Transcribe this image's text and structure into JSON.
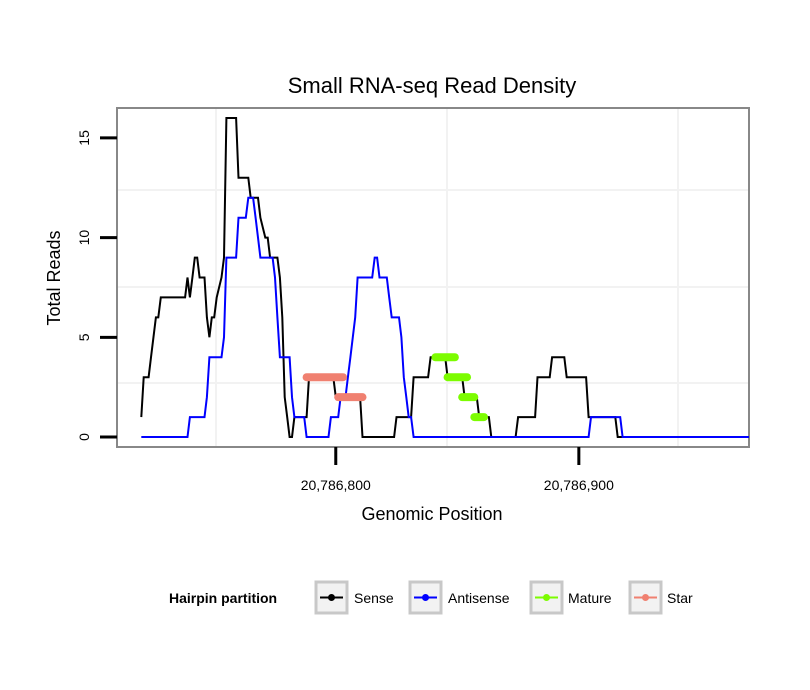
{
  "chart_data": {
    "type": "line",
    "title": "Small RNA-seq Read Density",
    "xlabel": "Genomic Position",
    "ylabel": "Total Reads",
    "xlim": [
      20786710,
      20786970
    ],
    "ylim": [
      -0.5,
      16.5
    ],
    "x_ticks": [
      20786800,
      20786900
    ],
    "x_tick_labels": [
      "20,786,800",
      "20,786,900"
    ],
    "y_ticks": [
      0,
      5,
      10,
      15
    ],
    "y_tick_labels": [
      "0",
      "5",
      "10",
      "15"
    ],
    "grid": true,
    "legend_position": "bottom",
    "legend_title": "Hairpin partition",
    "series": [
      {
        "name": "Sense",
        "color": "#000000",
        "style": "step",
        "points": [
          [
            20786720,
            1
          ],
          [
            20786721,
            3
          ],
          [
            20786723,
            3
          ],
          [
            20786724,
            4
          ],
          [
            20786726,
            6
          ],
          [
            20786727,
            6
          ],
          [
            20786728,
            7
          ],
          [
            20786738,
            7
          ],
          [
            20786739,
            8
          ],
          [
            20786740,
            7
          ],
          [
            20786741,
            8
          ],
          [
            20786742,
            9
          ],
          [
            20786743,
            9
          ],
          [
            20786744,
            8
          ],
          [
            20786746,
            8
          ],
          [
            20786747,
            6
          ],
          [
            20786748,
            5
          ],
          [
            20786749,
            6
          ],
          [
            20786750,
            6
          ],
          [
            20786751,
            7
          ],
          [
            20786753,
            8
          ],
          [
            20786754,
            9
          ],
          [
            20786755,
            16
          ],
          [
            20786759,
            16
          ],
          [
            20786760,
            13
          ],
          [
            20786764,
            13
          ],
          [
            20786765,
            12
          ],
          [
            20786768,
            12
          ],
          [
            20786769,
            11
          ],
          [
            20786771,
            10
          ],
          [
            20786772,
            10
          ],
          [
            20786773,
            9
          ],
          [
            20786776,
            9
          ],
          [
            20786777,
            8
          ],
          [
            20786778,
            6
          ],
          [
            20786779,
            2
          ],
          [
            20786780,
            1
          ],
          [
            20786781,
            0
          ],
          [
            20786782,
            0
          ],
          [
            20786783,
            1
          ],
          [
            20786788,
            1
          ],
          [
            20786789,
            3
          ],
          [
            20786799,
            3
          ],
          [
            20786800,
            2
          ],
          [
            20786810,
            2
          ],
          [
            20786811,
            0
          ],
          [
            20786824,
            0
          ],
          [
            20786825,
            1
          ],
          [
            20786831,
            1
          ],
          [
            20786832,
            3
          ],
          [
            20786838,
            3
          ],
          [
            20786839,
            4
          ],
          [
            20786845,
            4
          ],
          [
            20786846,
            3
          ],
          [
            20786852,
            3
          ],
          [
            20786853,
            2
          ],
          [
            20786858,
            2
          ],
          [
            20786859,
            1
          ],
          [
            20786863,
            1
          ],
          [
            20786864,
            0
          ],
          [
            20786874,
            0
          ],
          [
            20786875,
            1
          ],
          [
            20786882,
            1
          ],
          [
            20786883,
            3
          ],
          [
            20786888,
            3
          ],
          [
            20786889,
            4
          ],
          [
            20786894,
            4
          ],
          [
            20786895,
            3
          ],
          [
            20786903,
            3
          ],
          [
            20786904,
            1
          ],
          [
            20786915,
            1
          ],
          [
            20786916,
            0
          ],
          [
            20786970,
            0
          ]
        ]
      },
      {
        "name": "Antisense",
        "color": "#0000ff",
        "style": "step",
        "points": [
          [
            20786720,
            0
          ],
          [
            20786739,
            0
          ],
          [
            20786740,
            1
          ],
          [
            20786746,
            1
          ],
          [
            20786747,
            2
          ],
          [
            20786748,
            4
          ],
          [
            20786753,
            4
          ],
          [
            20786754,
            5
          ],
          [
            20786755,
            9
          ],
          [
            20786759,
            9
          ],
          [
            20786760,
            11
          ],
          [
            20786763,
            11
          ],
          [
            20786764,
            12
          ],
          [
            20786766,
            12
          ],
          [
            20786767,
            11
          ],
          [
            20786768,
            10
          ],
          [
            20786769,
            9
          ],
          [
            20786774,
            9
          ],
          [
            20786775,
            8
          ],
          [
            20786776,
            6
          ],
          [
            20786777,
            4
          ],
          [
            20786781,
            4
          ],
          [
            20786782,
            2
          ],
          [
            20786783,
            1
          ],
          [
            20786787,
            1
          ],
          [
            20786788,
            0
          ],
          [
            20786797,
            0
          ],
          [
            20786798,
            1
          ],
          [
            20786801,
            1
          ],
          [
            20786802,
            2
          ],
          [
            20786804,
            2
          ],
          [
            20786805,
            3
          ],
          [
            20786806,
            4
          ],
          [
            20786807,
            5
          ],
          [
            20786808,
            6
          ],
          [
            20786809,
            8
          ],
          [
            20786815,
            8
          ],
          [
            20786816,
            9
          ],
          [
            20786817,
            9
          ],
          [
            20786818,
            8
          ],
          [
            20786821,
            8
          ],
          [
            20786822,
            7
          ],
          [
            20786823,
            6
          ],
          [
            20786826,
            6
          ],
          [
            20786827,
            5
          ],
          [
            20786828,
            3
          ],
          [
            20786829,
            2
          ],
          [
            20786830,
            1
          ],
          [
            20786831,
            1
          ],
          [
            20786832,
            0
          ],
          [
            20786904,
            0
          ],
          [
            20786905,
            1
          ],
          [
            20786917,
            1
          ],
          [
            20786918,
            0
          ],
          [
            20786970,
            0
          ]
        ]
      },
      {
        "name": "Mature",
        "color": "#7cfc00",
        "style": "segments",
        "segments": [
          [
            20786841,
            20786849,
            4
          ],
          [
            20786846,
            20786854,
            3
          ],
          [
            20786852,
            20786857,
            2
          ],
          [
            20786857,
            20786861,
            1
          ]
        ]
      },
      {
        "name": "Star",
        "color": "#f08070",
        "style": "segments",
        "segments": [
          [
            20786788,
            20786803,
            3
          ],
          [
            20786801,
            20786811,
            2
          ]
        ]
      }
    ]
  }
}
